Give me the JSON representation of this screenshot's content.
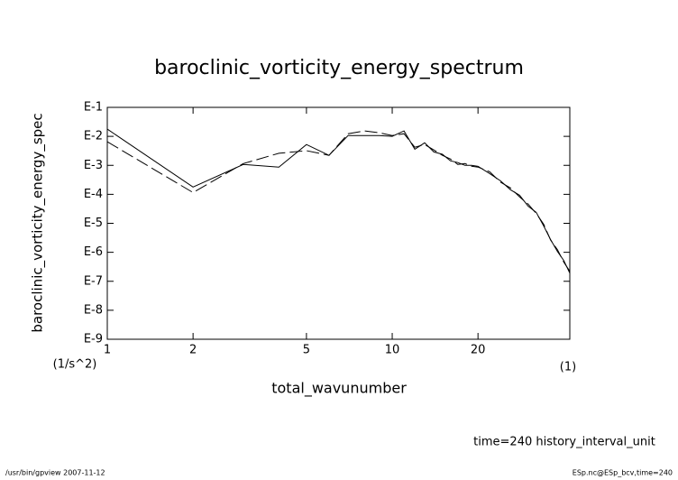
{
  "chart_data": {
    "type": "line",
    "title": "baroclinic_vorticity_energy_spectrum",
    "x_label": "total_wavunumber",
    "x_units": "(1)",
    "y_label": "baroclinic_vorticity_energy_spec",
    "y_units": "(1/s^2)",
    "annotation": "time=240 history_interval_unit",
    "footer_left": "/usr/bin/gpview   2007-11-12",
    "footer_right": "ESp.nc@ESp_bcv,time=240",
    "xscale": "log",
    "yscale": "log",
    "xlim": [
      1,
      42
    ],
    "ylim": [
      1e-09,
      0.1
    ],
    "xticks": [
      1,
      2,
      5,
      10,
      20
    ],
    "yticks": [
      {
        "value": 0.1,
        "label": "E-1"
      },
      {
        "value": 0.01,
        "label": "E-2"
      },
      {
        "value": 0.001,
        "label": "E-3"
      },
      {
        "value": 0.0001,
        "label": "E-4"
      },
      {
        "value": 1e-05,
        "label": "E-5"
      },
      {
        "value": 1e-06,
        "label": "E-6"
      },
      {
        "value": 1e-07,
        "label": "E-7"
      },
      {
        "value": 1e-08,
        "label": "E-8"
      },
      {
        "value": 1e-09,
        "label": "E-9"
      }
    ],
    "x": [
      1,
      2,
      3,
      4,
      5,
      6,
      7,
      8,
      9,
      10,
      11,
      12,
      13,
      14,
      15,
      16,
      17,
      18,
      19,
      20,
      22,
      24,
      26,
      28,
      30,
      32,
      34,
      36,
      38,
      40,
      42
    ],
    "series": [
      {
        "color": "#000000",
        "dash": "solid",
        "values": [
          0.0178,
          0.000178,
          0.00107,
          0.00087,
          0.0052,
          0.0022,
          0.0107,
          0.0107,
          0.0107,
          0.01,
          0.0154,
          0.0036,
          0.006,
          0.0029,
          0.0024,
          0.00144,
          0.00124,
          0.001,
          0.001,
          0.00093,
          0.00052,
          0.00029,
          0.000144,
          9.3e-05,
          3.9e-05,
          2.4e-05,
          8.1e-06,
          2.7e-06,
          1.07e-06,
          5.2e-07,
          1.9e-07
        ]
      },
      {
        "color": "#000000",
        "dash": "dashed",
        "values": [
          0.0065,
          0.000115,
          0.00115,
          0.0026,
          0.0032,
          0.0022,
          0.0123,
          0.0154,
          0.0133,
          0.0107,
          0.0123,
          0.0042,
          0.0052,
          0.0034,
          0.0022,
          0.00166,
          0.00107,
          0.00115,
          0.00093,
          0.00087,
          0.0006,
          0.00026,
          0.000166,
          8.1e-05,
          4.6e-05,
          2.2e-05,
          9.3e-06,
          2.6e-06,
          1.23e-06,
          4.6e-07,
          2.2e-07
        ]
      }
    ]
  }
}
